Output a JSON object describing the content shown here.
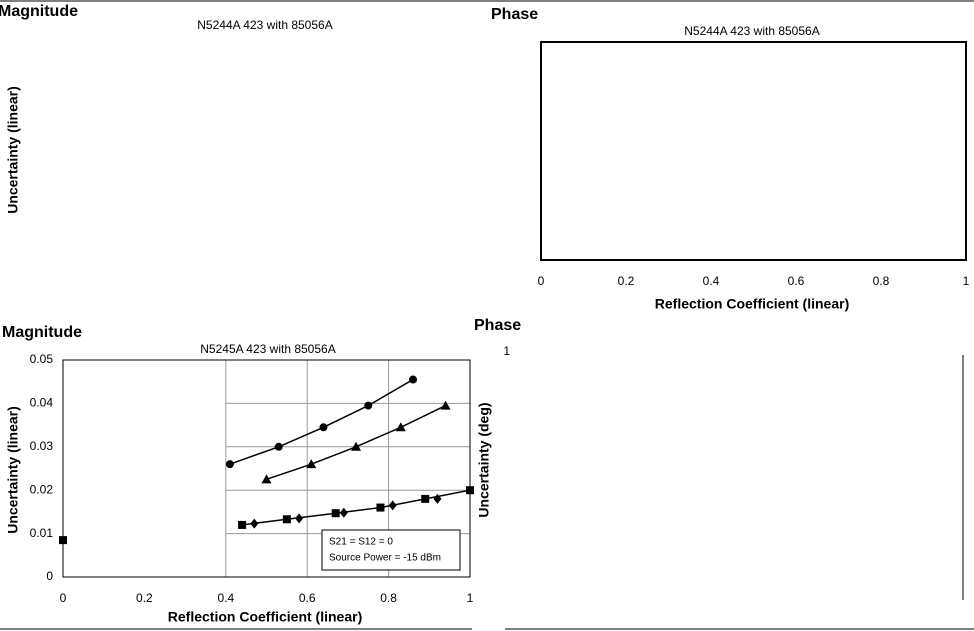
{
  "chart_data": [
    {
      "type": "line",
      "heading": "Magnitude",
      "title": "N5244A 423 with 85056A",
      "ylabel": "Uncertainty (linear)"
    },
    {
      "type": "line",
      "heading": "Phase",
      "title": "N5244A 423 with 85056A",
      "xlabel": "Reflection Coefficient (linear)",
      "xlim": [
        0,
        1
      ],
      "xticks": [
        0,
        0.2,
        0.4,
        0.6,
        0.8,
        1
      ]
    },
    {
      "type": "scatter",
      "heading": "Magnitude",
      "title": "N5245A 423 with 85056A",
      "xlabel": "Reflection Coefficient (linear)",
      "ylabel": "Uncertainty (linear)",
      "xlim": [
        0,
        1
      ],
      "xticks": [
        0,
        0.2,
        0.4,
        0.6,
        0.8,
        1
      ],
      "ylim": [
        0,
        0.05
      ],
      "yticks": [
        0,
        0.01,
        0.02,
        0.03,
        0.04,
        0.05
      ],
      "grid": true,
      "annotations": [
        "S21 = S12 = 0",
        "Source Power = -15 dBm"
      ],
      "series": [
        {
          "color": "#000000",
          "marker": "circle",
          "line": true,
          "x": [
            0.41,
            0.53,
            0.64,
            0.75,
            0.86
          ],
          "values": [
            0.026,
            0.03,
            0.0345,
            0.0395,
            0.0455
          ]
        },
        {
          "color": "#000000",
          "marker": "triangle",
          "line": true,
          "x": [
            0.5,
            0.61,
            0.72,
            0.83,
            0.94
          ],
          "values": [
            0.0225,
            0.026,
            0.03,
            0.0345,
            0.0395
          ]
        },
        {
          "color": "#000000",
          "marker": "square",
          "line": true,
          "x": [
            0.44,
            0.55,
            0.67,
            0.78,
            0.89,
            1
          ],
          "values": [
            0.012,
            0.0133,
            0.0147,
            0.016,
            0.018,
            0.02
          ]
        },
        {
          "color": "#000000",
          "marker": "diamond",
          "line": false,
          "x": [
            0.47,
            0.58,
            0.69,
            0.81,
            0.92
          ],
          "values": [
            0.0123,
            0.0135,
            0.0148,
            0.0165,
            0.018
          ]
        },
        {
          "color": "#000000",
          "marker": "square",
          "line": false,
          "x": [
            0
          ],
          "values": [
            0.0085
          ]
        }
      ]
    },
    {
      "type": "line",
      "heading": "Phase",
      "ylabel": "Uncertainty (deg)",
      "ylim": [
        0,
        1
      ],
      "yticks": [
        1
      ]
    }
  ]
}
